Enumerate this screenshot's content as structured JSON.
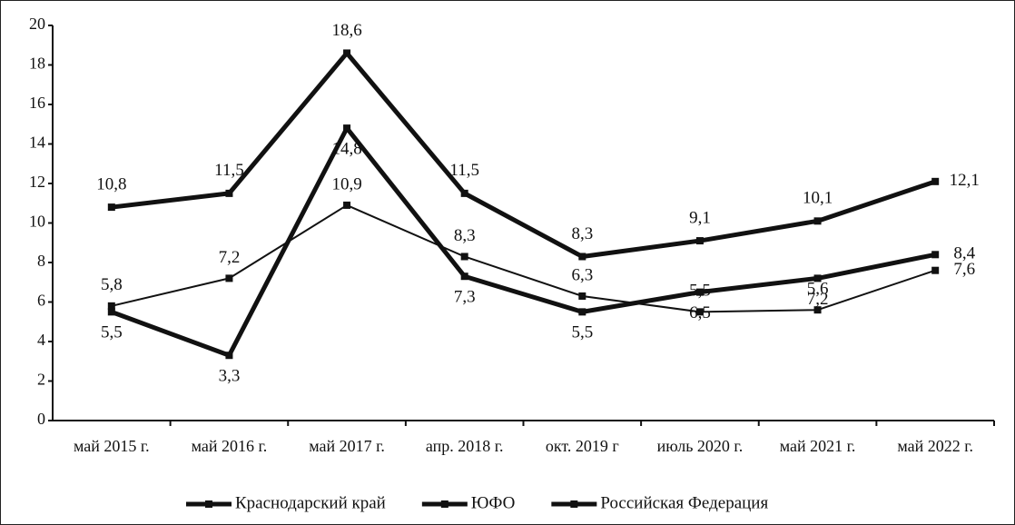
{
  "chart_data": {
    "type": "line",
    "categories": [
      "май 2015 г.",
      "май 2016 г.",
      "май 2017 г.",
      "апр. 2018 г.",
      "окт. 2019 г",
      "июль 2020 г.",
      "май 2021 г.",
      "май 2022 г."
    ],
    "series": [
      {
        "name": "Краснодарский край",
        "color": "#111111",
        "values": [
          10.8,
          11.5,
          18.6,
          11.5,
          8.3,
          9.1,
          10.1,
          12.1
        ],
        "value_labels": [
          "10,8",
          "11,5",
          "18,6",
          "11,5",
          "8,3",
          "9,1",
          "10,1",
          "12,1"
        ]
      },
      {
        "name": "ЮФО",
        "color": "#111111",
        "values": [
          5.5,
          3.3,
          14.8,
          7.3,
          5.5,
          6.5,
          7.2,
          8.4
        ],
        "value_labels": [
          "5,5",
          "3,3",
          "14,8",
          "7,3",
          "5,5",
          "6,5",
          "7,2",
          "8,4"
        ]
      },
      {
        "name": "Российская Федерация",
        "color": "#111111",
        "values": [
          5.8,
          7.2,
          10.9,
          8.3,
          6.3,
          5.5,
          5.6,
          7.6
        ],
        "value_labels": [
          "5,8",
          "7,2",
          "10,9",
          "8,3",
          "6,3",
          "5,5",
          "5,6",
          "7,6"
        ]
      }
    ],
    "ylim": [
      0,
      20
    ],
    "yticks": [
      0,
      2,
      4,
      6,
      8,
      10,
      12,
      14,
      16,
      18,
      20
    ],
    "legend": "bottom"
  }
}
